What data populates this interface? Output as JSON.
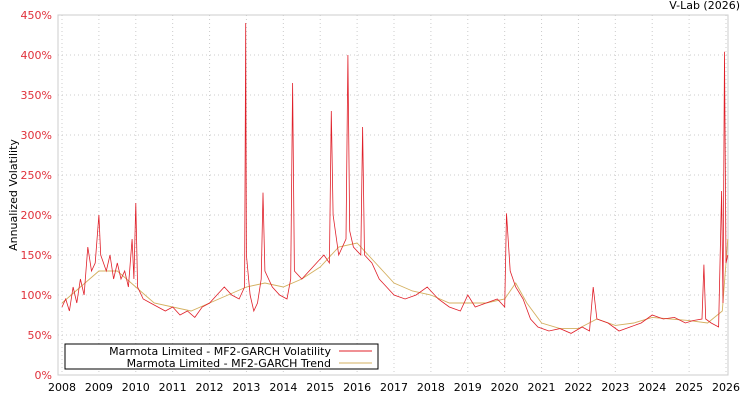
{
  "chart_data": {
    "type": "line",
    "credit": "V-Lab (2026)",
    "ylabel": "Annualized Volatility",
    "xlabel": "",
    "xlim": [
      2007.9,
      2026.05
    ],
    "ylim": [
      0,
      450
    ],
    "grid": true,
    "legend_placement": "bottom-left",
    "x_ticks": [
      "2008",
      "2009",
      "2010",
      "2011",
      "2012",
      "2013",
      "2014",
      "2015",
      "2016",
      "2017",
      "2018",
      "2019",
      "2020",
      "2021",
      "2022",
      "2023",
      "2024",
      "2025",
      "2026"
    ],
    "y_ticks": [
      "0%",
      "50%",
      "100%",
      "150%",
      "200%",
      "250%",
      "300%",
      "350%",
      "400%",
      "450%"
    ],
    "colors": {
      "volatility": "#e0202a",
      "trend": "#d4b060",
      "ytick": "#e0303a"
    },
    "series": [
      {
        "name": "Marmota Limited - MF2-GARCH Volatility",
        "x": [
          2008.0,
          2008.1,
          2008.2,
          2008.3,
          2008.4,
          2008.5,
          2008.6,
          2008.7,
          2008.8,
          2008.9,
          2009.0,
          2009.05,
          2009.2,
          2009.3,
          2009.4,
          2009.5,
          2009.6,
          2009.7,
          2009.8,
          2009.9,
          2009.95,
          2010.0,
          2010.05,
          2010.2,
          2010.4,
          2010.6,
          2010.8,
          2011.0,
          2011.2,
          2011.4,
          2011.6,
          2011.8,
          2012.0,
          2012.2,
          2012.4,
          2012.6,
          2012.8,
          2012.95,
          2012.98,
          2013.0,
          2013.1,
          2013.2,
          2013.3,
          2013.4,
          2013.45,
          2013.5,
          2013.7,
          2013.9,
          2014.1,
          2014.2,
          2014.25,
          2014.3,
          2014.5,
          2014.7,
          2014.9,
          2015.1,
          2015.25,
          2015.3,
          2015.35,
          2015.5,
          2015.7,
          2015.75,
          2015.8,
          2015.9,
          2016.1,
          2016.15,
          2016.2,
          2016.4,
          2016.6,
          2016.8,
          2017.0,
          2017.3,
          2017.6,
          2017.9,
          2018.2,
          2018.5,
          2018.8,
          2019.0,
          2019.2,
          2019.5,
          2019.8,
          2020.0,
          2020.05,
          2020.15,
          2020.3,
          2020.5,
          2020.7,
          2020.9,
          2021.2,
          2021.5,
          2021.8,
          2022.1,
          2022.3,
          2022.4,
          2022.5,
          2022.8,
          2023.1,
          2023.4,
          2023.7,
          2024.0,
          2024.3,
          2024.6,
          2024.9,
          2025.1,
          2025.35,
          2025.4,
          2025.45,
          2025.6,
          2025.8,
          2025.88,
          2025.92,
          2025.96,
          2026.0,
          2026.05
        ],
        "values": [
          85,
          95,
          80,
          110,
          90,
          120,
          100,
          160,
          130,
          140,
          200,
          150,
          130,
          150,
          120,
          140,
          120,
          130,
          110,
          170,
          120,
          215,
          110,
          95,
          90,
          85,
          80,
          85,
          75,
          80,
          72,
          85,
          90,
          100,
          110,
          100,
          95,
          110,
          440,
          150,
          100,
          80,
          90,
          120,
          228,
          130,
          110,
          100,
          95,
          120,
          365,
          130,
          120,
          130,
          140,
          150,
          140,
          330,
          200,
          150,
          170,
          400,
          180,
          160,
          150,
          310,
          150,
          140,
          120,
          110,
          100,
          95,
          100,
          110,
          95,
          85,
          80,
          100,
          85,
          90,
          95,
          85,
          202,
          130,
          110,
          95,
          70,
          60,
          55,
          58,
          52,
          60,
          55,
          110,
          70,
          65,
          55,
          60,
          65,
          75,
          70,
          72,
          65,
          68,
          70,
          138,
          70,
          65,
          60,
          230,
          90,
          404,
          140,
          150
        ]
      },
      {
        "name": "Marmota Limited - MF2-GARCH Trend",
        "x": [
          2008,
          2008.5,
          2009,
          2009.5,
          2010,
          2010.5,
          2011,
          2011.5,
          2012,
          2012.5,
          2013,
          2013.5,
          2014,
          2014.5,
          2015,
          2015.5,
          2016,
          2016.5,
          2017,
          2017.5,
          2018,
          2018.5,
          2019,
          2019.5,
          2020,
          2020.3,
          2020.6,
          2021,
          2021.5,
          2022,
          2022.5,
          2023,
          2023.5,
          2024,
          2024.5,
          2025,
          2025.5,
          2025.9,
          2026.05
        ],
        "values": [
          90,
          110,
          130,
          130,
          110,
          90,
          85,
          80,
          90,
          100,
          110,
          115,
          110,
          120,
          135,
          160,
          165,
          140,
          115,
          105,
          100,
          90,
          90,
          90,
          95,
          115,
          90,
          65,
          58,
          58,
          70,
          62,
          65,
          72,
          70,
          68,
          65,
          80,
          170
        ]
      }
    ]
  }
}
